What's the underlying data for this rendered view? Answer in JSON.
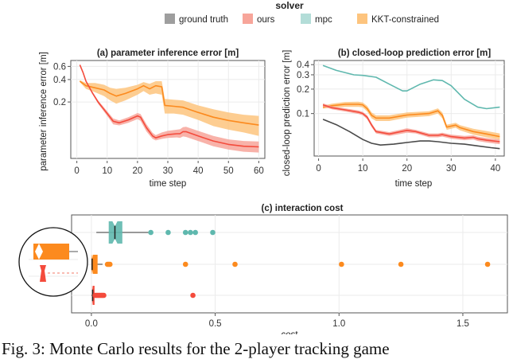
{
  "legend": {
    "title": "solver",
    "items": [
      {
        "label": "ground truth",
        "color": "#9e9e9e",
        "line": "#4a4a4a"
      },
      {
        "label": "ours",
        "color": "#f7a59a",
        "line": "#f44b3c"
      },
      {
        "label": "mpc",
        "color": "#b3ddd8",
        "line": "#5fb8ae"
      },
      {
        "label": "KKT-constrained",
        "color": "#fdc47e",
        "line": "#fc8a1e"
      }
    ]
  },
  "chart_data": [
    {
      "type": "line",
      "title": "(a) parameter inference error [m]",
      "xlabel": "time step",
      "ylabel": "parameter inference error [m]",
      "yscale": "log",
      "xlim": [
        -2,
        62
      ],
      "ylim": [
        0.035,
        0.72
      ],
      "xticks": [
        0,
        10,
        20,
        30,
        40,
        50,
        60
      ],
      "xtick_labels": [
        "0",
        "10",
        "20",
        "30",
        "40",
        "50",
        "60"
      ],
      "yticks": [
        0.2,
        0.4,
        0.6
      ],
      "ytick_labels": [
        "0.2",
        "0.4",
        "0.6"
      ],
      "series": [
        {
          "name": "KKT-constrained",
          "x": [
            1,
            3,
            6,
            9,
            11,
            13,
            16,
            20,
            22,
            24,
            26,
            28,
            29,
            32,
            35,
            40,
            45,
            50,
            55,
            60
          ],
          "y": [
            0.38,
            0.33,
            0.31,
            0.29,
            0.26,
            0.24,
            0.26,
            0.3,
            0.33,
            0.3,
            0.33,
            0.32,
            0.18,
            0.175,
            0.17,
            0.145,
            0.125,
            0.113,
            0.105,
            0.098
          ],
          "lower": [
            0.37,
            0.3,
            0.27,
            0.24,
            0.21,
            0.19,
            0.21,
            0.25,
            0.28,
            0.25,
            0.26,
            0.25,
            0.14,
            0.14,
            0.135,
            0.115,
            0.095,
            0.085,
            0.078,
            0.07
          ],
          "upper": [
            0.39,
            0.36,
            0.36,
            0.34,
            0.31,
            0.3,
            0.31,
            0.34,
            0.37,
            0.35,
            0.38,
            0.38,
            0.22,
            0.215,
            0.21,
            0.18,
            0.16,
            0.145,
            0.135,
            0.13
          ]
        },
        {
          "name": "ours",
          "x": [
            1,
            2,
            3,
            5,
            7,
            10,
            12,
            14,
            17,
            20,
            21,
            23,
            25,
            26,
            28,
            30,
            33,
            34,
            35,
            36,
            40,
            45,
            50,
            55,
            60
          ],
          "y": [
            0.63,
            0.5,
            0.38,
            0.27,
            0.2,
            0.14,
            0.11,
            0.105,
            0.115,
            0.13,
            0.125,
            0.09,
            0.07,
            0.066,
            0.07,
            0.073,
            0.075,
            0.075,
            0.08,
            0.08,
            0.07,
            0.06,
            0.054,
            0.051,
            0.05
          ],
          "lower": [
            0.62,
            0.49,
            0.37,
            0.26,
            0.19,
            0.13,
            0.1,
            0.097,
            0.105,
            0.118,
            0.112,
            0.08,
            0.064,
            0.061,
            0.064,
            0.066,
            0.067,
            0.066,
            0.069,
            0.068,
            0.06,
            0.051,
            0.046,
            0.043,
            0.042
          ],
          "upper": [
            0.64,
            0.51,
            0.39,
            0.28,
            0.21,
            0.15,
            0.12,
            0.113,
            0.125,
            0.142,
            0.138,
            0.1,
            0.077,
            0.072,
            0.078,
            0.082,
            0.085,
            0.086,
            0.092,
            0.093,
            0.082,
            0.07,
            0.063,
            0.06,
            0.059
          ]
        }
      ]
    },
    {
      "type": "line",
      "title": "(b) closed-loop prediction error [m]",
      "xlabel": "time step",
      "ylabel": "closed-loop prediction error [m]",
      "yscale": "log",
      "xlim": [
        -1,
        42
      ],
      "ylim": [
        0.03,
        0.45
      ],
      "xticks": [
        0,
        10,
        20,
        30,
        40
      ],
      "xtick_labels": [
        "0",
        "10",
        "20",
        "30",
        "40"
      ],
      "yticks": [
        0.1,
        0.2,
        0.3,
        0.4
      ],
      "ytick_labels": [
        "0.1",
        "0.2",
        "0.3",
        "0.4"
      ],
      "series": [
        {
          "name": "mpc",
          "x": [
            1,
            4,
            8,
            10,
            13,
            16,
            19,
            20,
            23,
            26,
            28,
            30,
            33,
            36,
            38,
            41
          ],
          "y": [
            0.39,
            0.34,
            0.3,
            0.295,
            0.28,
            0.23,
            0.19,
            0.19,
            0.23,
            0.26,
            0.255,
            0.22,
            0.15,
            0.12,
            0.115,
            0.12
          ]
        },
        {
          "name": "KKT-constrained",
          "x": [
            1,
            3,
            6,
            9,
            10,
            11,
            12,
            13,
            16,
            20,
            25,
            27,
            28,
            29,
            31,
            32,
            35,
            38,
            41
          ],
          "y": [
            0.12,
            0.125,
            0.13,
            0.13,
            0.128,
            0.115,
            0.095,
            0.088,
            0.088,
            0.096,
            0.1,
            0.108,
            0.095,
            0.068,
            0.072,
            0.067,
            0.06,
            0.056,
            0.052
          ],
          "lower": [
            0.115,
            0.118,
            0.121,
            0.121,
            0.119,
            0.106,
            0.087,
            0.081,
            0.081,
            0.089,
            0.093,
            0.1,
            0.087,
            0.063,
            0.067,
            0.062,
            0.055,
            0.051,
            0.048
          ],
          "upper": [
            0.125,
            0.132,
            0.139,
            0.14,
            0.137,
            0.124,
            0.103,
            0.095,
            0.095,
            0.103,
            0.107,
            0.116,
            0.103,
            0.073,
            0.077,
            0.072,
            0.065,
            0.061,
            0.057
          ]
        },
        {
          "name": "ours",
          "x": [
            1,
            3,
            6,
            9,
            10,
            11,
            12,
            13,
            16,
            20,
            22,
            25,
            27,
            28,
            30,
            33,
            35,
            36,
            38,
            41
          ],
          "y": [
            0.128,
            0.118,
            0.111,
            0.104,
            0.1,
            0.09,
            0.072,
            0.06,
            0.056,
            0.062,
            0.06,
            0.054,
            0.054,
            0.055,
            0.052,
            0.05,
            0.051,
            0.049,
            0.047,
            0.045
          ],
          "lower": [
            0.122,
            0.113,
            0.106,
            0.099,
            0.095,
            0.085,
            0.068,
            0.057,
            0.053,
            0.058,
            0.057,
            0.051,
            0.051,
            0.052,
            0.049,
            0.047,
            0.048,
            0.046,
            0.044,
            0.042
          ],
          "upper": [
            0.134,
            0.123,
            0.116,
            0.109,
            0.105,
            0.095,
            0.076,
            0.063,
            0.059,
            0.066,
            0.063,
            0.057,
            0.057,
            0.058,
            0.055,
            0.053,
            0.054,
            0.052,
            0.05,
            0.048
          ]
        },
        {
          "name": "ground truth",
          "x": [
            1,
            4,
            7,
            10,
            12,
            14,
            17,
            20,
            23,
            25,
            27,
            30,
            33,
            36,
            39,
            41
          ],
          "y": [
            0.085,
            0.073,
            0.06,
            0.048,
            0.043,
            0.041,
            0.042,
            0.044,
            0.046,
            0.046,
            0.045,
            0.043,
            0.042,
            0.04,
            0.038,
            0.037
          ]
        }
      ]
    },
    {
      "type": "box",
      "title": "(c) interaction cost",
      "xlabel": "cost",
      "xlim": [
        -0.08,
        1.68
      ],
      "xticks": [
        0.0,
        0.5,
        1.0,
        1.5
      ],
      "xtick_labels": [
        "0.0",
        "0.5",
        "1.0",
        "1.5"
      ],
      "grid": true,
      "series": [
        {
          "name": "mpc",
          "whisker_low": 0.02,
          "q1": 0.07,
          "median": 0.095,
          "q3": 0.125,
          "whisker_high": 0.23,
          "notch": [
            0.085,
            0.105
          ],
          "outliers": [
            0.24,
            0.31,
            0.38,
            0.4,
            0.42,
            0.49
          ]
        },
        {
          "name": "KKT-constrained",
          "whisker_low": 0.0,
          "q1": 0.0,
          "median": 0.003,
          "q3": 0.025,
          "whisker_high": 0.045,
          "notch": [
            0.001,
            0.006
          ],
          "outliers": [
            0.065,
            0.07,
            0.075,
            0.38,
            0.58,
            1.01,
            1.25,
            1.6
          ]
        },
        {
          "name": "ours",
          "whisker_low": 0.0,
          "q1": 0.003,
          "median": 0.005,
          "q3": 0.008,
          "whisker_high": 0.01,
          "notch": [
            0.004,
            0.006
          ],
          "outliers": [
            0.015,
            0.02,
            0.025,
            0.03,
            0.035,
            0.04,
            0.045,
            0.05,
            0.41
          ]
        }
      ],
      "inset": {
        "description": "magnified view of KKT-constrained and ours boxes near zero"
      }
    }
  ],
  "caption": {
    "text": "Fig. 3: Monte Carlo results for the 2-player tracking game"
  }
}
